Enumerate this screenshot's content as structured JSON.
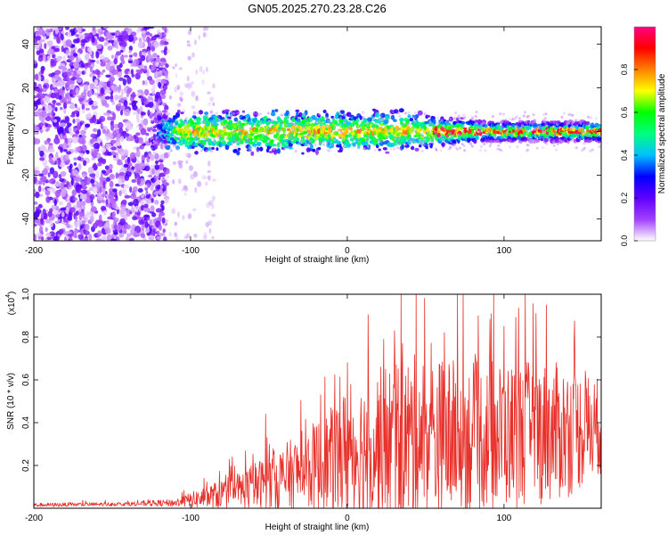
{
  "title": "GN05.2025.270.23.28.C26",
  "chart_data": [
    {
      "type": "heatmap",
      "title": "GN05.2025.270.23.28.C26",
      "xlabel": "Height of straight line (km)",
      "ylabel": "Frequency (Hz)",
      "xlim": [
        -200,
        162
      ],
      "ylim": [
        -50,
        48
      ],
      "xticks": [
        "-200",
        "-100",
        "0",
        "100"
      ],
      "yticks": [
        "40",
        "20",
        "0",
        "-20",
        "-40"
      ],
      "xtick_values": [
        -200,
        -100,
        0,
        100
      ],
      "ytick_values": [
        40,
        20,
        0,
        -20,
        -40
      ],
      "colorbar": {
        "label": "Normalized spectral amplitude",
        "range": [
          0,
          1
        ],
        "ticks": [
          "0.0",
          "0.2",
          "0.4",
          "0.6",
          "0.8"
        ],
        "tick_values": [
          0.0,
          0.2,
          0.4,
          0.6,
          0.8
        ],
        "colormap": [
          "#ffffff",
          "#a040ff",
          "#6000ff",
          "#0000ff",
          "#00c0ff",
          "#00ff80",
          "#00ff00",
          "#ffff00",
          "#ff8000",
          "#ff0000",
          "#ff0080"
        ]
      },
      "signal": {
        "noise_region_x": [
          -200,
          -115
        ],
        "band_start_x": -125,
        "center_frequency_hz": 0,
        "band_halfwidth_hz": 5,
        "strong_from_x": 30
      }
    },
    {
      "type": "line",
      "xlabel": "Height of straight line (km)",
      "ylabel": "SNR (10 * v/v)",
      "y_exponent_label": "(x10",
      "y_exponent": "4",
      "xlim": [
        -200,
        162
      ],
      "ylim": [
        0,
        1.0
      ],
      "xticks": [
        "-200",
        "-100",
        "0",
        "100"
      ],
      "yticks": [
        "1.0",
        "0.8",
        "0.6",
        "0.4",
        "0.2"
      ],
      "xtick_values": [
        -200,
        -100,
        0,
        100
      ],
      "ytick_values": [
        1.0,
        0.8,
        0.6,
        0.4,
        0.2
      ],
      "line_color": "#e8302a",
      "envelope": {
        "x": [
          -200,
          -140,
          -110,
          -90,
          -70,
          -50,
          -30,
          -10,
          0,
          20,
          40,
          60,
          80,
          100,
          120,
          140,
          162
        ],
        "base": [
          0.015,
          0.02,
          0.025,
          0.05,
          0.08,
          0.12,
          0.17,
          0.22,
          0.26,
          0.3,
          0.32,
          0.33,
          0.33,
          0.34,
          0.35,
          0.36,
          0.38
        ],
        "spread": [
          0.01,
          0.01,
          0.02,
          0.06,
          0.1,
          0.15,
          0.2,
          0.28,
          0.35,
          0.4,
          0.45,
          0.42,
          0.4,
          0.38,
          0.38,
          0.35,
          0.25
        ]
      },
      "peaks": [
        {
          "x": -52,
          "y": 0.44
        },
        {
          "x": -17,
          "y": 0.53
        },
        {
          "x": 0,
          "y": 0.68
        },
        {
          "x": 30,
          "y": 0.83
        },
        {
          "x": 44,
          "y": 1.0
        },
        {
          "x": 62,
          "y": 0.82
        },
        {
          "x": 100,
          "y": 0.85
        },
        {
          "x": 127,
          "y": 0.95
        }
      ]
    }
  ]
}
